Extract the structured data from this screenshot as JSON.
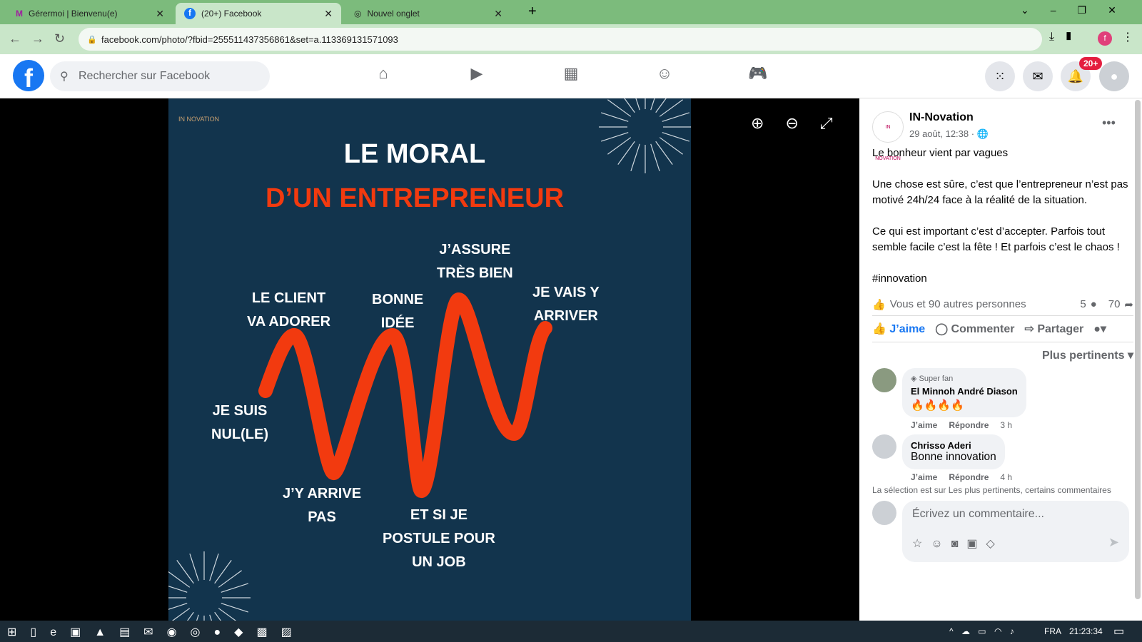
{
  "browser": {
    "tabs": [
      {
        "label": "Gérermoi | Bienvenu(e)"
      },
      {
        "label": "(20+) Facebook"
      },
      {
        "label": "Nouvel onglet"
      }
    ],
    "url": "facebook.com/photo/?fbid=255511437356861&set=a.113369131571093",
    "profile_initial": "f"
  },
  "facebook": {
    "search_placeholder": "Rechercher sur Facebook",
    "notifications_badge": "20+",
    "brand_color": "#1877f2"
  },
  "photo": {
    "title1": "LE MORAL",
    "title2": "D’UN ENTREPRENEUR",
    "logo": "IN NOVATION",
    "labels": {
      "nul": "JE SUIS\nNUL(LE)",
      "client": "LE CLIENT\nVA ADORER",
      "arrive_pas": "J’Y ARRIVE\nPAS",
      "bonne_idee": "BONNE\nIDÉE",
      "postule": "ET SI JE\nPOSTULE POUR\nUN JOB",
      "assure": "J’ASSURE\nTRÈS BIEN",
      "arriver": "JE VAIS Y\nARRIVER"
    },
    "accent": "#f23a0f",
    "bg": "#12344d"
  },
  "post": {
    "author": "IN-Novation",
    "date": "29 août, 12:38 ·",
    "p1": "Le bonheur vient par vagues",
    "p2": "Une chose est sûre, c’est que l’entrepreneur n’est pas motivé 24h/24 face à la réalité de la situation.",
    "p3": "Ce qui est important c’est d’accepter. Parfois tout semble facile c’est la fête ! Et parfois c’est le chaos !",
    "hashtag": "#innovation",
    "reactions": "Vous et 90 autres personnes",
    "comments_count": "5",
    "shares_count": "70",
    "like": "J’aime",
    "comment": "Commenter",
    "share": "Partager",
    "sort": "Plus pertinents"
  },
  "comments": [
    {
      "badge": "Super fan",
      "name": "El Minnoh André Diason",
      "text": "🔥🔥🔥🔥",
      "like": "J’aime",
      "reply": "Répondre",
      "time": "3 h"
    },
    {
      "name": "Chrisso Aderi",
      "text": "Bonne innovation",
      "like": "J’aime",
      "reply": "Répondre",
      "time": "4 h"
    }
  ],
  "selection_note": "La sélection est sur Les plus pertinents, certains commentaires",
  "comment_placeholder": "Écrivez un commentaire...",
  "taskbar": {
    "lang": "FRA",
    "time": "21:23:34"
  }
}
